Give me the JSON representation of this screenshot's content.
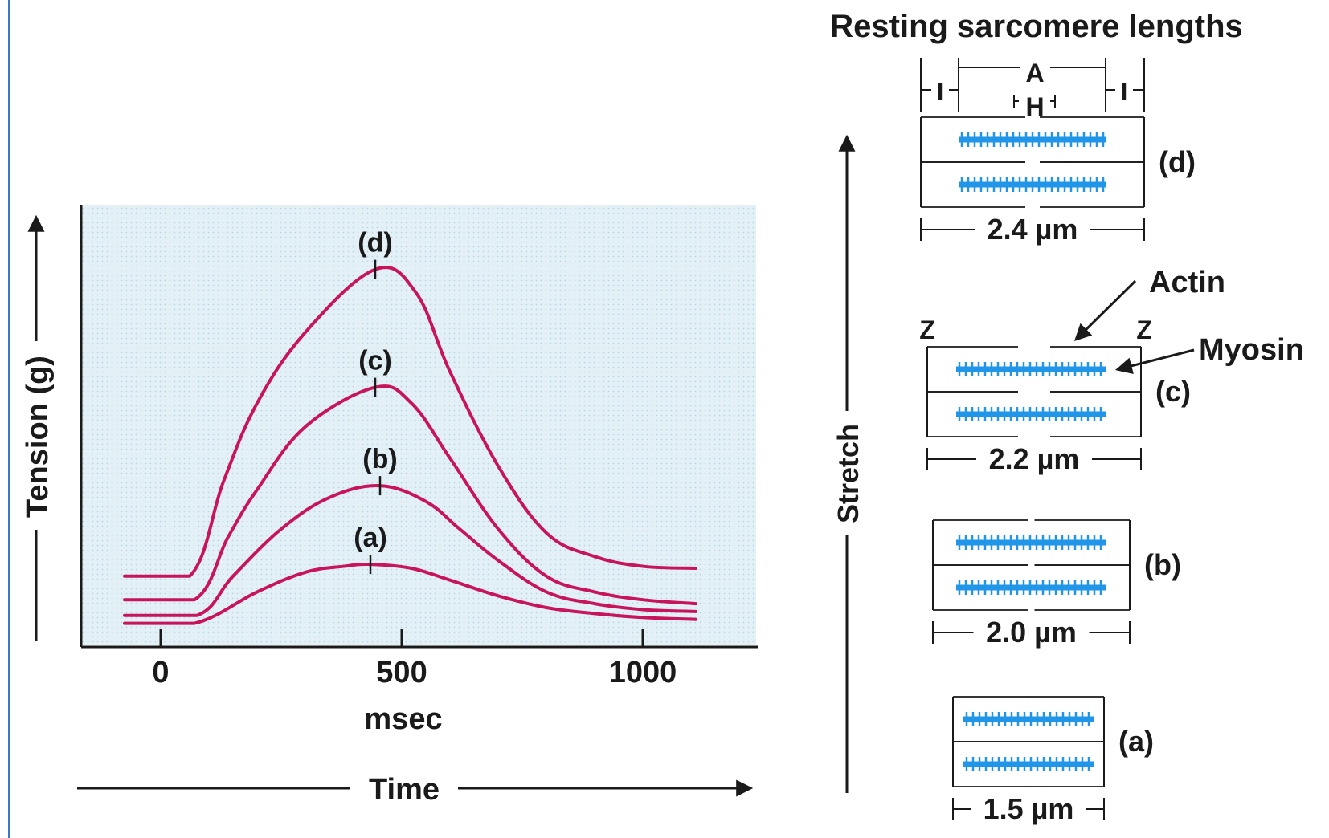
{
  "colors": {
    "curve": "#c8145a",
    "myosin": "#2196e8",
    "plot_background": "#dcedf5",
    "ink": "#1a1a1a",
    "left_border": "#3a78c4"
  },
  "tension_graph": {
    "y_axis_label": "Tension (g)",
    "x_axis_unit_label": "msec",
    "time_label": "Time",
    "tick_labels": [
      "0",
      "500",
      "1000"
    ],
    "curve_labels": [
      "(a)",
      "(b)",
      "(c)",
      "(d)"
    ]
  },
  "chart_data": {
    "type": "line",
    "title": "",
    "xlabel": "msec",
    "ylabel": "Tension (g)",
    "xlim": [
      -80,
      1230
    ],
    "x_ticks": [
      0,
      500,
      1000
    ],
    "y_ticks_shown": false,
    "series": [
      {
        "name": "(a)",
        "peak_x": 435,
        "x": [
          -75,
          70,
          200,
          300,
          380,
          435,
          520,
          600,
          700,
          800,
          900,
          1000,
          1110
        ],
        "y": [
          0.06,
          0.06,
          0.14,
          0.19,
          0.205,
          0.21,
          0.2,
          0.17,
          0.13,
          0.1,
          0.085,
          0.075,
          0.07
        ]
      },
      {
        "name": "(b)",
        "peak_x": 455,
        "x": [
          -75,
          75,
          150,
          250,
          350,
          455,
          550,
          620,
          700,
          800,
          900,
          1000,
          1110
        ],
        "y": [
          0.08,
          0.08,
          0.18,
          0.3,
          0.38,
          0.41,
          0.37,
          0.3,
          0.22,
          0.14,
          0.11,
          0.095,
          0.09
        ]
      },
      {
        "name": "(c)",
        "peak_x": 445,
        "x": [
          -75,
          70,
          140,
          200,
          300,
          445,
          520,
          600,
          700,
          800,
          900,
          1000,
          1110
        ],
        "y": [
          0.12,
          0.12,
          0.28,
          0.4,
          0.56,
          0.66,
          0.62,
          0.48,
          0.3,
          0.18,
          0.14,
          0.12,
          0.11
        ]
      },
      {
        "name": "(d)",
        "peak_x": 445,
        "x": [
          -75,
          60,
          130,
          200,
          300,
          445,
          530,
          600,
          700,
          800,
          900,
          1000,
          1110
        ],
        "y": [
          0.18,
          0.18,
          0.42,
          0.62,
          0.8,
          0.96,
          0.9,
          0.7,
          0.46,
          0.29,
          0.23,
          0.205,
          0.2
        ]
      }
    ]
  },
  "sarcomere_panel": {
    "title": "Resting sarcomere lengths",
    "stretch_label": "Stretch",
    "band_labels": {
      "i_left": "I",
      "a": "A",
      "h": "H",
      "i_right": "I"
    },
    "z_label": "Z",
    "actin_label": "Actin",
    "myosin_label": "Myosin",
    "sarcomeres": [
      {
        "label": "(d)",
        "length": "2.4 µm"
      },
      {
        "label": "(c)",
        "length": "2.2 µm"
      },
      {
        "label": "(b)",
        "length": "2.0 µm"
      },
      {
        "label": "(a)",
        "length": "1.5 µm"
      }
    ]
  }
}
